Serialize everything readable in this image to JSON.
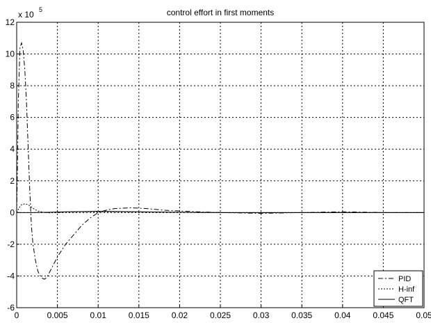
{
  "chart_data": {
    "type": "line",
    "title": "control effort in first moments",
    "y_multiplier": "x 10",
    "y_multiplier_exponent": "5",
    "xlabel": "",
    "ylabel": "",
    "xlim": [
      0,
      0.05
    ],
    "ylim": [
      -6,
      12
    ],
    "xticks": [
      0,
      0.005,
      0.01,
      0.015,
      0.02,
      0.025,
      0.03,
      0.035,
      0.04,
      0.045,
      0.05
    ],
    "xtick_labels": [
      "0",
      "0.005",
      "0.01",
      "0.015",
      "0.02",
      "0.025",
      "0.03",
      "0.035",
      "0.04",
      "0.045",
      "0.05"
    ],
    "yticks": [
      -6,
      -4,
      -2,
      0,
      2,
      4,
      6,
      8,
      10,
      12
    ],
    "ytick_labels": [
      "-6",
      "-4",
      "-2",
      "0",
      "2",
      "4",
      "6",
      "8",
      "10",
      "12"
    ],
    "grid": true,
    "legend_position": "bottom-right",
    "series": [
      {
        "name": "PID",
        "style": "dashdot",
        "color": "#000000",
        "x": [
          0,
          0.0001,
          0.0002,
          0.0004,
          0.0006,
          0.0008,
          0.001,
          0.0012,
          0.0014,
          0.0016,
          0.0018,
          0.002,
          0.0023,
          0.0026,
          0.003,
          0.0034,
          0.0037,
          0.004,
          0.0045,
          0.005,
          0.006,
          0.007,
          0.008,
          0.009,
          0.01,
          0.011,
          0.012,
          0.014,
          0.016,
          0.018,
          0.02,
          0.022,
          0.025,
          0.03,
          0.035,
          0.04,
          0.045,
          0.05
        ],
        "y": [
          0,
          3,
          7,
          10.4,
          10.7,
          10.2,
          9.0,
          7.0,
          4.2,
          1.5,
          -0.8,
          -2.0,
          -3.0,
          -3.7,
          -4.1,
          -4.2,
          -4.1,
          -3.8,
          -3.3,
          -2.8,
          -2.0,
          -1.4,
          -0.8,
          -0.35,
          0.0,
          0.15,
          0.25,
          0.3,
          0.25,
          0.15,
          0.1,
          0.05,
          0.0,
          -0.05,
          0.0,
          0.05,
          0.0,
          0.0
        ]
      },
      {
        "name": "H-inf",
        "style": "dotted",
        "color": "#000000",
        "x": [
          0,
          0.0003,
          0.0006,
          0.001,
          0.0014,
          0.0018,
          0.0022,
          0.0026,
          0.003,
          0.0035,
          0.004,
          0.005,
          0.006,
          0.008,
          0.01,
          0.012,
          0.015,
          0.02,
          0.025,
          0.03,
          0.04,
          0.05
        ],
        "y": [
          0,
          0.3,
          0.5,
          0.55,
          0.5,
          0.35,
          0.2,
          0.1,
          0.05,
          0.0,
          -0.02,
          0.0,
          0.03,
          0.05,
          0.05,
          0.05,
          0.03,
          0.02,
          0.0,
          0.0,
          0.0,
          0.0
        ]
      },
      {
        "name": "QFT",
        "style": "solid",
        "color": "#000000",
        "x": [
          0,
          0.002,
          0.004,
          0.006,
          0.01,
          0.015,
          0.02,
          0.025,
          0.03,
          0.035,
          0.04,
          0.045,
          0.05
        ],
        "y": [
          0,
          0.0,
          0.02,
          0.05,
          0.08,
          0.05,
          0.02,
          0.0,
          0.0,
          0.0,
          0.0,
          0.0,
          0.0
        ]
      }
    ]
  }
}
